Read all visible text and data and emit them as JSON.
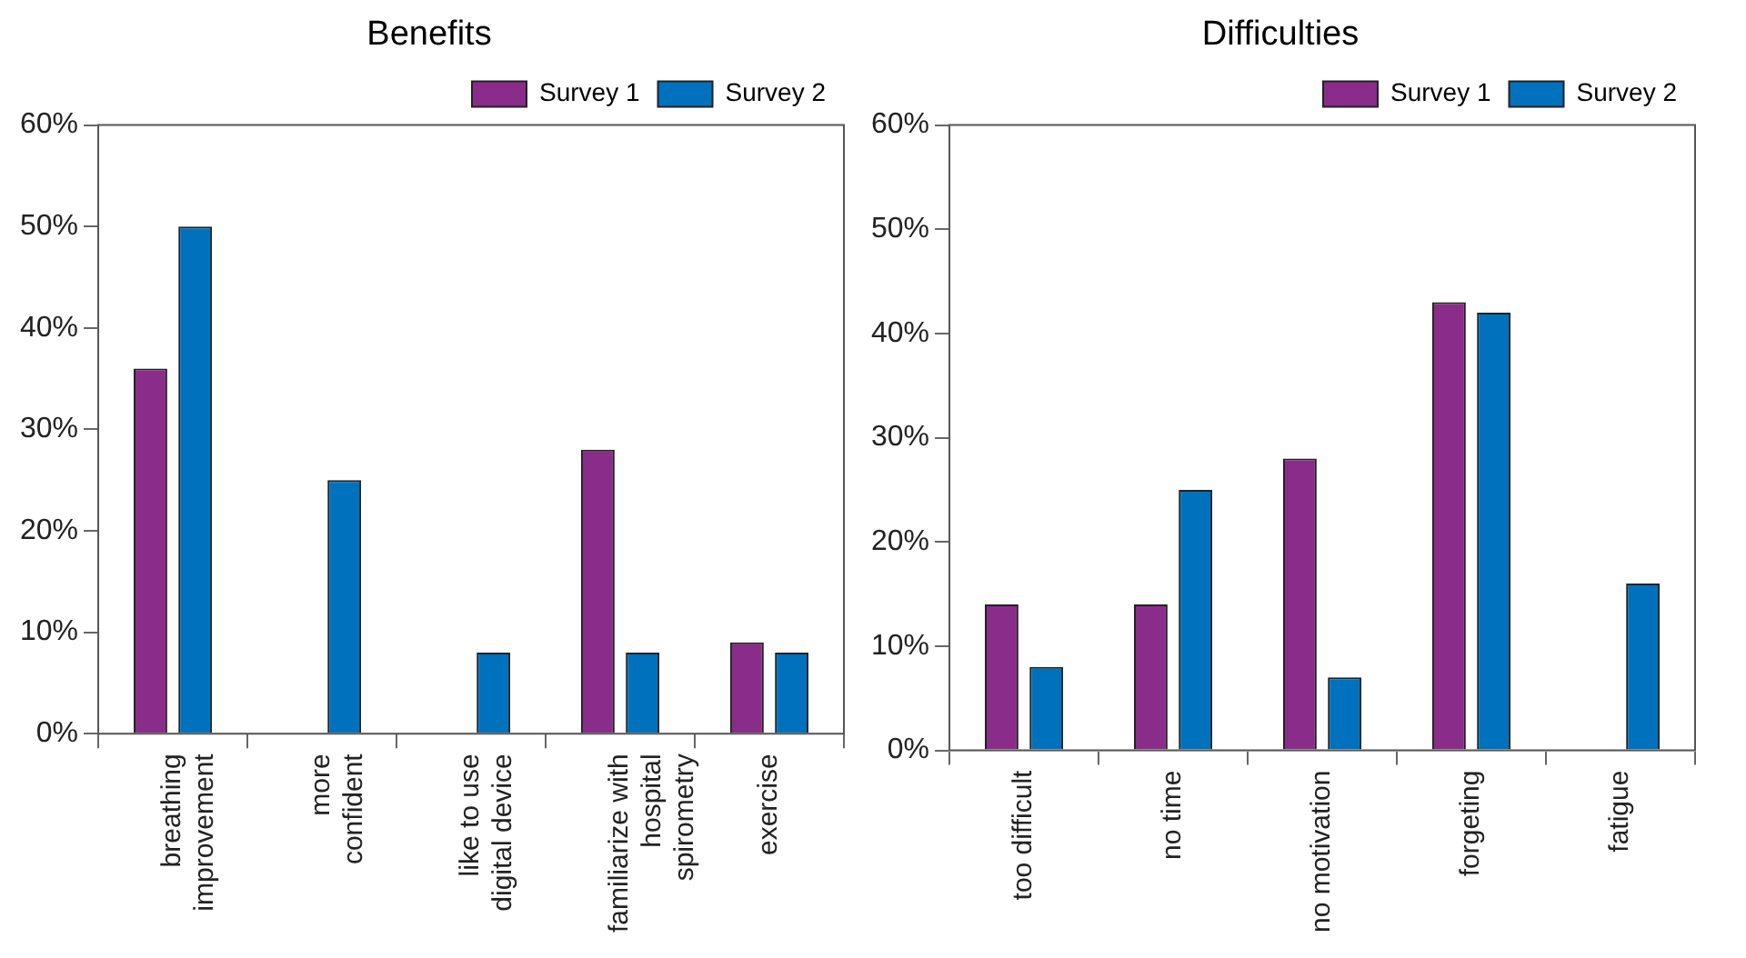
{
  "chart_data": [
    {
      "type": "bar",
      "title": "Benefits",
      "categories": [
        "breathing\nimprovement",
        "more\nconfident",
        "like to use\ndigital device",
        "familiarize with\nhospital\nspirometry",
        "exercise"
      ],
      "series": [
        {
          "name": "Survey 1",
          "color": "#8a2c8a",
          "values": [
            36,
            0,
            0,
            28,
            9
          ]
        },
        {
          "name": "Survey 2",
          "color": "#0072bd",
          "values": [
            50,
            25,
            8,
            8,
            8
          ]
        }
      ],
      "ylim": [
        0,
        60
      ],
      "yticks": [
        {
          "value": 0,
          "label": "0%"
        },
        {
          "value": 10,
          "label": "10%"
        },
        {
          "value": 20,
          "label": "20%"
        },
        {
          "value": 30,
          "label": "30%"
        },
        {
          "value": 40,
          "label": "40%"
        },
        {
          "value": 50,
          "label": "50%"
        },
        {
          "value": 60,
          "label": "60%"
        }
      ],
      "grid": false,
      "legend": "top right"
    },
    {
      "type": "bar",
      "title": "Difficulties",
      "categories": [
        "too difficult",
        "no time",
        "no motivation",
        "forgeting",
        "fatigue"
      ],
      "series": [
        {
          "name": "Survey 1",
          "color": "#8a2c8a",
          "values": [
            14,
            14,
            28,
            43,
            0
          ]
        },
        {
          "name": "Survey 2",
          "color": "#0072bd",
          "values": [
            8,
            25,
            7,
            42,
            16
          ]
        }
      ],
      "ylim": [
        0,
        60
      ],
      "yticks": [
        {
          "value": 0,
          "label": "0%"
        },
        {
          "value": 10,
          "label": "10%"
        },
        {
          "value": 20,
          "label": "20%"
        },
        {
          "value": 30,
          "label": "30%"
        },
        {
          "value": 40,
          "label": "40%"
        },
        {
          "value": 50,
          "label": "50%"
        },
        {
          "value": 60,
          "label": "60%"
        }
      ],
      "grid": false,
      "legend": "top right"
    }
  ]
}
